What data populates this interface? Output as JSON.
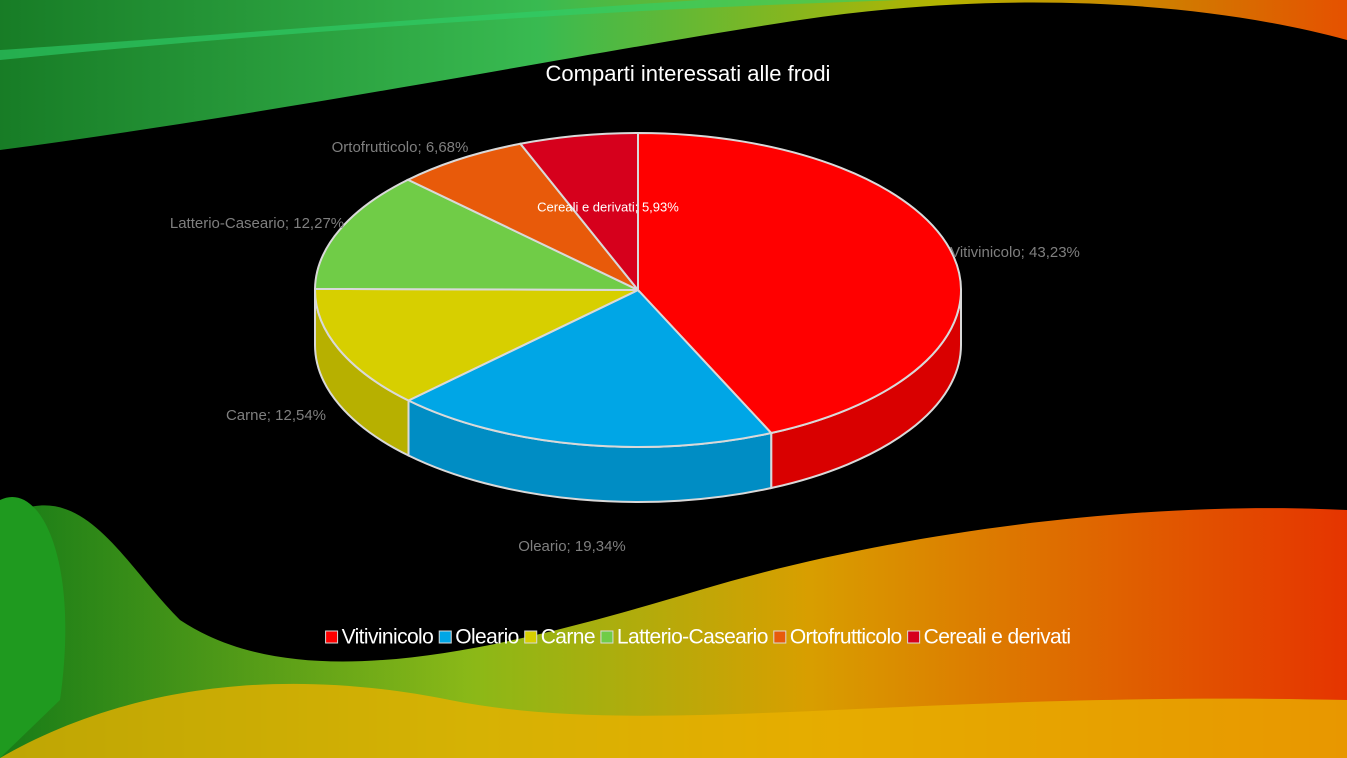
{
  "chart_data": {
    "type": "pie3d",
    "title": "Comparti interessati alle frodi",
    "categories": [
      "Vitivinicolo",
      "Oleario",
      "Carne",
      "Latterio-Caseario",
      "Ortofrutticolo",
      "Cereali e derivati"
    ],
    "values": [
      43.23,
      19.34,
      12.54,
      12.27,
      6.68,
      5.93
    ],
    "value_labels": [
      "Vitivinicolo; 43,23%",
      "Oleario; 19,34%",
      "Carne; 12,54%",
      "Latterio-Caseario; 12,27%",
      "Ortofrutticolo; 6,68%",
      "Cereali e derivati; 5,93%"
    ],
    "colors": [
      "#ff0000",
      "#00a6e6",
      "#d7cf00",
      "#70cc47",
      "#e85a0a",
      "#d6001c"
    ],
    "legend": "bottom"
  }
}
